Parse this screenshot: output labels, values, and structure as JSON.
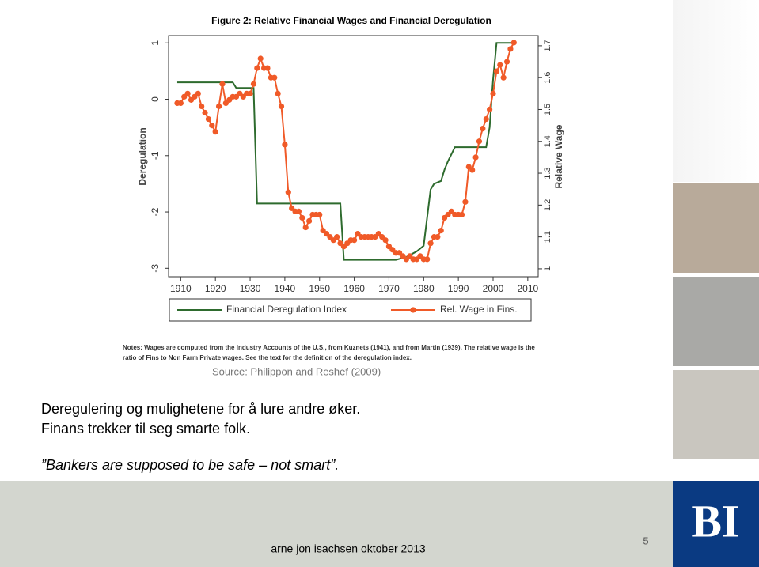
{
  "chart_data": {
    "type": "line",
    "title": "Figure 2: Relative Financial Wages and Financial Deregulation",
    "ylabel": "Deregulation",
    "y2label": "Relative Wage",
    "xlim": [
      1906.5,
      2013
    ],
    "xticks": [
      1910,
      1920,
      1930,
      1940,
      1950,
      1960,
      1970,
      1980,
      1990,
      2000,
      2010
    ],
    "ylim": [
      -3.15,
      1.13
    ],
    "yticks": [
      -3,
      -2,
      -1,
      0,
      1
    ],
    "y2lim": [
      0.975,
      1.732
    ],
    "y2ticks": [
      1,
      1.1,
      1.2,
      1.3,
      1.4,
      1.5,
      1.6,
      1.7
    ],
    "legend": "bottom",
    "series": [
      {
        "name": "Financial Deregulation Index",
        "color": "#2e6b2e",
        "markers": false,
        "x": [
          1909,
          1925,
          1926,
          1931,
          1932,
          1956,
          1957,
          1972,
          1975,
          1978,
          1980,
          1982,
          1983,
          1985,
          1986,
          1987,
          1989,
          1998,
          1999,
          2000,
          2001,
          2006
        ],
        "values": [
          0.3,
          0.3,
          0.2,
          0.2,
          -1.85,
          -1.85,
          -2.85,
          -2.85,
          -2.8,
          -2.7,
          -2.6,
          -1.6,
          -1.5,
          -1.45,
          -1.25,
          -1.1,
          -0.85,
          -0.85,
          -0.5,
          0.35,
          1.0,
          1.0
        ]
      },
      {
        "name": "Rel. Wage in Fins.",
        "color": "#f05a28",
        "markers": true,
        "axis": "y2",
        "x": [
          1909,
          1910,
          1911,
          1912,
          1913,
          1914,
          1915,
          1916,
          1917,
          1918,
          1919,
          1920,
          1921,
          1922,
          1923,
          1924,
          1925,
          1926,
          1927,
          1928,
          1929,
          1930,
          1931,
          1932,
          1933,
          1934,
          1935,
          1936,
          1937,
          1938,
          1939,
          1940,
          1941,
          1942,
          1943,
          1944,
          1945,
          1946,
          1947,
          1948,
          1949,
          1950,
          1951,
          1952,
          1953,
          1954,
          1955,
          1956,
          1957,
          1958,
          1959,
          1960,
          1961,
          1962,
          1963,
          1964,
          1965,
          1966,
          1967,
          1968,
          1969,
          1970,
          1971,
          1972,
          1973,
          1974,
          1975,
          1976,
          1977,
          1978,
          1979,
          1980,
          1981,
          1982,
          1983,
          1984,
          1985,
          1986,
          1987,
          1988,
          1989,
          1990,
          1991,
          1992,
          1993,
          1994,
          1995,
          1996,
          1997,
          1998,
          1999,
          2000,
          2001,
          2002,
          2003,
          2004,
          2005,
          2006
        ],
        "values": [
          1.52,
          1.52,
          1.54,
          1.55,
          1.53,
          1.54,
          1.55,
          1.51,
          1.49,
          1.47,
          1.45,
          1.43,
          1.51,
          1.58,
          1.52,
          1.53,
          1.54,
          1.54,
          1.55,
          1.54,
          1.55,
          1.55,
          1.58,
          1.63,
          1.66,
          1.63,
          1.63,
          1.6,
          1.6,
          1.55,
          1.51,
          1.39,
          1.24,
          1.19,
          1.18,
          1.18,
          1.16,
          1.13,
          1.15,
          1.17,
          1.17,
          1.17,
          1.12,
          1.11,
          1.1,
          1.09,
          1.1,
          1.08,
          1.07,
          1.08,
          1.09,
          1.09,
          1.11,
          1.1,
          1.1,
          1.1,
          1.1,
          1.1,
          1.11,
          1.1,
          1.09,
          1.07,
          1.06,
          1.05,
          1.05,
          1.04,
          1.03,
          1.04,
          1.03,
          1.03,
          1.04,
          1.03,
          1.03,
          1.08,
          1.1,
          1.1,
          1.12,
          1.16,
          1.17,
          1.18,
          1.17,
          1.17,
          1.17,
          1.21,
          1.32,
          1.31,
          1.35,
          1.4,
          1.44,
          1.47,
          1.5,
          1.55,
          1.62,
          1.64,
          1.6,
          1.65,
          1.69,
          1.71
        ]
      }
    ],
    "notes": [
      "Notes: Wages are computed from the Industry Accounts of the U.S., from Kuznets (1941), and from Martin (1939). The relative wage is the",
      "ratio of Fins to Non Farm Private wages. See the text for the definition of the deregulation index."
    ],
    "source": "Source: Philippon and Reshef (2009)"
  },
  "slide": {
    "lines": [
      "Deregulering og mulighetene for å lure andre øker.",
      "Finans trekker til seg smarte folk.",
      "”Bankers are supposed to be safe – not smart”."
    ],
    "footer": "arne jon isachsen oktober 2013",
    "page": "5",
    "logo": "BI"
  }
}
